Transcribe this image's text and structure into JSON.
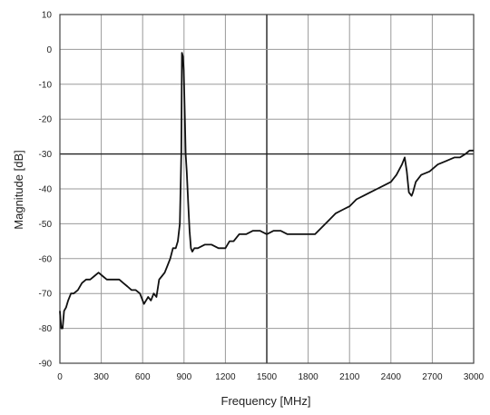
{
  "chart_data": {
    "type": "line",
    "title": "",
    "xlabel": "Frequency [MHz]",
    "ylabel": "Magnitude [dB]",
    "xlim": [
      0,
      3000
    ],
    "ylim": [
      -90,
      10
    ],
    "x_tick_labels": [
      "0",
      "300",
      "600",
      "900",
      "1200",
      "1500",
      "1800",
      "2100",
      "2400",
      "2700",
      "3000"
    ],
    "y_tick_labels": [
      "10",
      "0",
      "-10",
      "-20",
      "-30",
      "-40",
      "-50",
      "-60",
      "-70",
      "-80",
      "-90"
    ],
    "grid": true,
    "emphasized_gridlines": {
      "x": 1500,
      "y": -30
    },
    "line_color": "#111111",
    "series": [
      {
        "x": [
          0,
          10,
          20,
          30,
          45,
          60,
          80,
          100,
          130,
          160,
          190,
          220,
          250,
          280,
          310,
          340,
          370,
          400,
          430,
          460,
          490,
          520,
          550,
          580,
          610,
          640,
          660,
          680,
          700,
          720,
          740,
          760,
          780,
          800,
          820,
          840,
          855,
          870,
          880,
          885,
          892,
          898,
          905,
          912,
          920,
          930,
          940,
          950,
          960,
          975,
          1000,
          1050,
          1100,
          1150,
          1200,
          1230,
          1260,
          1300,
          1350,
          1400,
          1450,
          1500,
          1550,
          1600,
          1650,
          1700,
          1750,
          1800,
          1850,
          1900,
          1950,
          2000,
          2050,
          2100,
          2150,
          2200,
          2250,
          2300,
          2350,
          2400,
          2440,
          2480,
          2500,
          2515,
          2530,
          2550,
          2560,
          2580,
          2620,
          2680,
          2740,
          2800,
          2860,
          2900,
          2940,
          2970,
          3000
        ],
        "values": [
          -75,
          -80,
          -80,
          -75,
          -74,
          -72,
          -70,
          -70,
          -69,
          -67,
          -66,
          -66,
          -65,
          -64,
          -65,
          -66,
          -66,
          -66,
          -66,
          -67,
          -68,
          -69,
          -69,
          -70,
          -73,
          -71,
          -72,
          -70,
          -71,
          -66,
          -65,
          -64,
          -62,
          -60,
          -57,
          -57,
          -55,
          -50,
          -30,
          -1,
          -2,
          -6,
          -18,
          -30,
          -35,
          -44,
          -52,
          -57,
          -58,
          -57,
          -57,
          -56,
          -56,
          -57,
          -57,
          -55,
          -55,
          -53,
          -53,
          -52,
          -52,
          -53,
          -52,
          -52,
          -53,
          -53,
          -53,
          -53,
          -53,
          -51,
          -49,
          -47,
          -46,
          -45,
          -43,
          -42,
          -41,
          -40,
          -39,
          -38,
          -36,
          -33,
          -31,
          -35,
          -41,
          -42,
          -41,
          -38,
          -36,
          -35,
          -33,
          -32,
          -31,
          -31,
          -30,
          -29,
          -29
        ]
      }
    ]
  }
}
